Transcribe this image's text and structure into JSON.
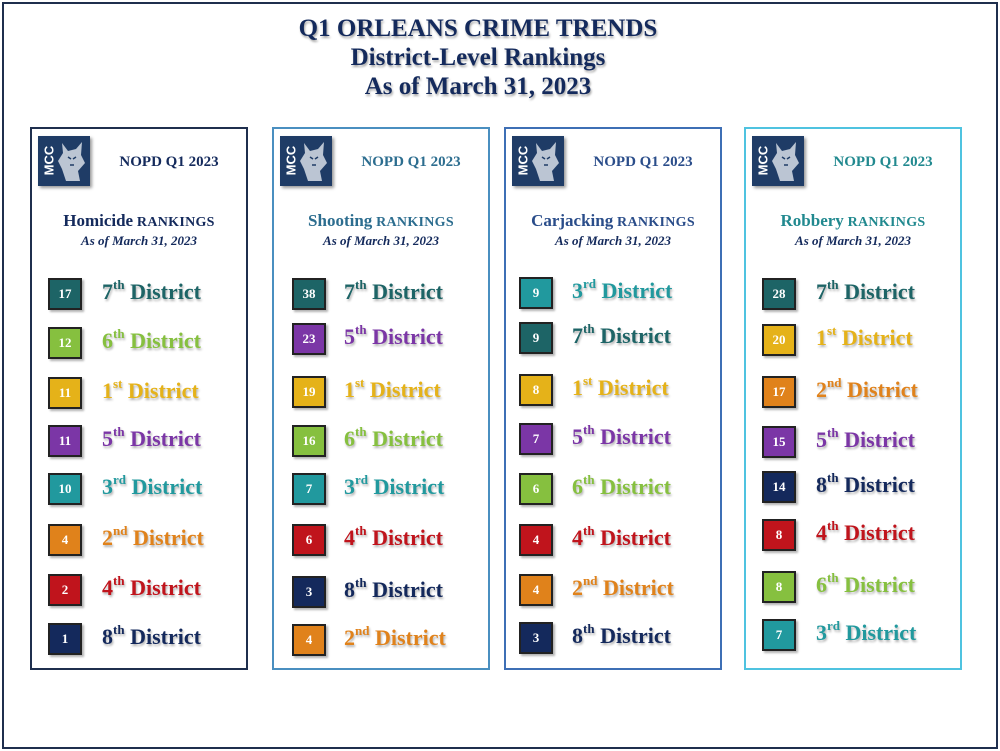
{
  "title": {
    "line1": "Q1 ORLEANS CRIME TRENDS",
    "line2": "District-Level Rankings",
    "line3": "As of March 31, 2023"
  },
  "colors": {
    "1st": "#e5b219",
    "2nd": "#e0821b",
    "3rd": "#21999e",
    "4th": "#c0141c",
    "5th": "#7b36a6",
    "6th": "#86c03f",
    "7th": "#1d6466",
    "8th": "#14295c"
  },
  "panels": [
    {
      "logo": "MCC",
      "nopd": "NOPD Q1 2023",
      "crime": "Homicide",
      "rankings": "RANKINGS",
      "asof": "As of March 31, 2023",
      "border": "#1f2f4e",
      "nopd_color": "#142a5c",
      "title_color": "#142a5c",
      "rows": [
        {
          "count": "17",
          "num": "7",
          "suffix": "th",
          "label": "District",
          "key": "7th"
        },
        {
          "count": "12",
          "num": "6",
          "suffix": "th",
          "label": "District",
          "key": "6th"
        },
        {
          "count": "11",
          "num": "1",
          "suffix": "st",
          "label": "District",
          "key": "1st"
        },
        {
          "count": "11",
          "num": "5",
          "suffix": "th",
          "label": "District",
          "key": "5th"
        },
        {
          "count": "10",
          "num": "3",
          "suffix": "rd",
          "label": "District",
          "key": "3rd"
        },
        {
          "count": "4",
          "num": "2",
          "suffix": "nd",
          "label": "District",
          "key": "2nd"
        },
        {
          "count": "2",
          "num": "4",
          "suffix": "th",
          "label": "District",
          "key": "4th"
        },
        {
          "count": "1",
          "num": "8",
          "suffix": "th",
          "label": "District",
          "key": "8th"
        }
      ]
    },
    {
      "logo": "MCC",
      "nopd": "NOPD Q1 2023",
      "crime": "Shooting",
      "rankings": "RANKINGS",
      "asof": "As of March 31, 2023",
      "border": "#4a8fc0",
      "nopd_color": "#2c6d8f",
      "title_color": "#2c6d8f",
      "rows": [
        {
          "count": "38",
          "num": "7",
          "suffix": "th",
          "label": "District",
          "key": "7th"
        },
        {
          "count": "23",
          "num": "5",
          "suffix": "th",
          "label": "District",
          "key": "5th"
        },
        {
          "count": "19",
          "num": "1",
          "suffix": "st",
          "label": "District",
          "key": "1st"
        },
        {
          "count": "16",
          "num": "6",
          "suffix": "th",
          "label": "District",
          "key": "6th"
        },
        {
          "count": "7",
          "num": "3",
          "suffix": "rd",
          "label": "District",
          "key": "3rd"
        },
        {
          "count": "6",
          "num": "4",
          "suffix": "th",
          "label": "District",
          "key": "4th"
        },
        {
          "count": "3",
          "num": "8",
          "suffix": "th",
          "label": "District",
          "key": "8th"
        },
        {
          "count": "4",
          "num": "2",
          "suffix": "nd",
          "label": "District",
          "key": "2nd"
        }
      ]
    },
    {
      "logo": "MCC",
      "nopd": "NOPD Q1 2023",
      "crime": "Carjacking",
      "rankings": "RANKINGS",
      "asof": "As of March 31, 2023",
      "border": "#3e6fb5",
      "nopd_color": "#2a4d8a",
      "title_color": "#2a4d8a",
      "rows": [
        {
          "count": "9",
          "num": "3",
          "suffix": "rd",
          "label": "District",
          "key": "3rd"
        },
        {
          "count": "9",
          "num": "7",
          "suffix": "th",
          "label": "District",
          "key": "7th"
        },
        {
          "count": "8",
          "num": "1",
          "suffix": "st",
          "label": "District",
          "key": "1st"
        },
        {
          "count": "7",
          "num": "5",
          "suffix": "th",
          "label": "District",
          "key": "5th"
        },
        {
          "count": "6",
          "num": "6",
          "suffix": "th",
          "label": "District",
          "key": "6th"
        },
        {
          "count": "4",
          "num": "4",
          "suffix": "th",
          "label": "District",
          "key": "4th"
        },
        {
          "count": "4",
          "num": "2",
          "suffix": "nd",
          "label": "District",
          "key": "2nd"
        },
        {
          "count": "3",
          "num": "8",
          "suffix": "th",
          "label": "District",
          "key": "8th"
        }
      ]
    },
    {
      "logo": "MCC",
      "nopd": "NOPD Q1 2023",
      "crime": "Robbery",
      "rankings": "RANKINGS",
      "asof": "As of March 31, 2023",
      "border": "#4fc3e0",
      "nopd_color": "#21898f",
      "title_color": "#21898f",
      "rows": [
        {
          "count": "28",
          "num": "7",
          "suffix": "th",
          "label": "District",
          "key": "7th"
        },
        {
          "count": "20",
          "num": "1",
          "suffix": "st",
          "label": "District",
          "key": "1st"
        },
        {
          "count": "17",
          "num": "2",
          "suffix": "nd",
          "label": "District",
          "key": "2nd"
        },
        {
          "count": "15",
          "num": "5",
          "suffix": "th",
          "label": "District",
          "key": "5th"
        },
        {
          "count": "14",
          "num": "8",
          "suffix": "th",
          "label": "District",
          "key": "8th"
        },
        {
          "count": "8",
          "num": "4",
          "suffix": "th",
          "label": "District",
          "key": "4th"
        },
        {
          "count": "8",
          "num": "6",
          "suffix": "th",
          "label": "District",
          "key": "6th"
        },
        {
          "count": "7",
          "num": "3",
          "suffix": "rd",
          "label": "District",
          "key": "3rd"
        }
      ]
    }
  ]
}
